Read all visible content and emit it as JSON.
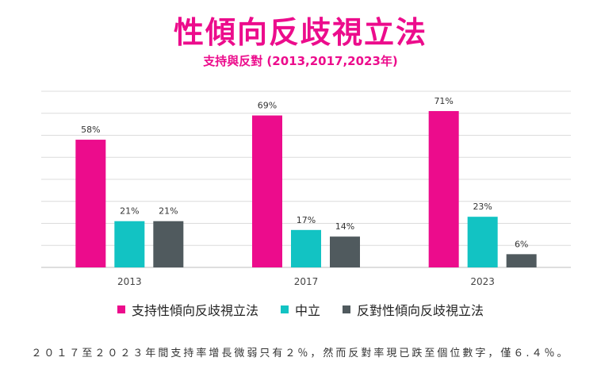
{
  "chart_data": {
    "type": "bar",
    "title": "性傾向反歧視立法",
    "subtitle": "支持與反對 (2013,2017,2023年)",
    "categories": [
      "2013",
      "2017",
      "2023"
    ],
    "series": [
      {
        "name": "支持性傾向反歧視立法",
        "values": [
          58,
          69,
          71
        ],
        "labels": [
          "58%",
          "69%",
          "71%"
        ],
        "color": "#ec0c8c"
      },
      {
        "name": "中立",
        "values": [
          21,
          17,
          23
        ],
        "labels": [
          "21%",
          "17%",
          "23%"
        ],
        "color": "#12c3c3"
      },
      {
        "name": "反對性傾向反歧視立法",
        "values": [
          21,
          14,
          6
        ],
        "labels": [
          "21%",
          "14%",
          "6%"
        ],
        "color": "#505a5e"
      }
    ],
    "ylim": [
      0,
      80
    ],
    "grid": true,
    "legend_position": "bottom"
  },
  "footnote": "２０１７至２０２３年間支持率增長微弱只有２％，然而反對率現已跌至個位數字，僅６.４％。"
}
